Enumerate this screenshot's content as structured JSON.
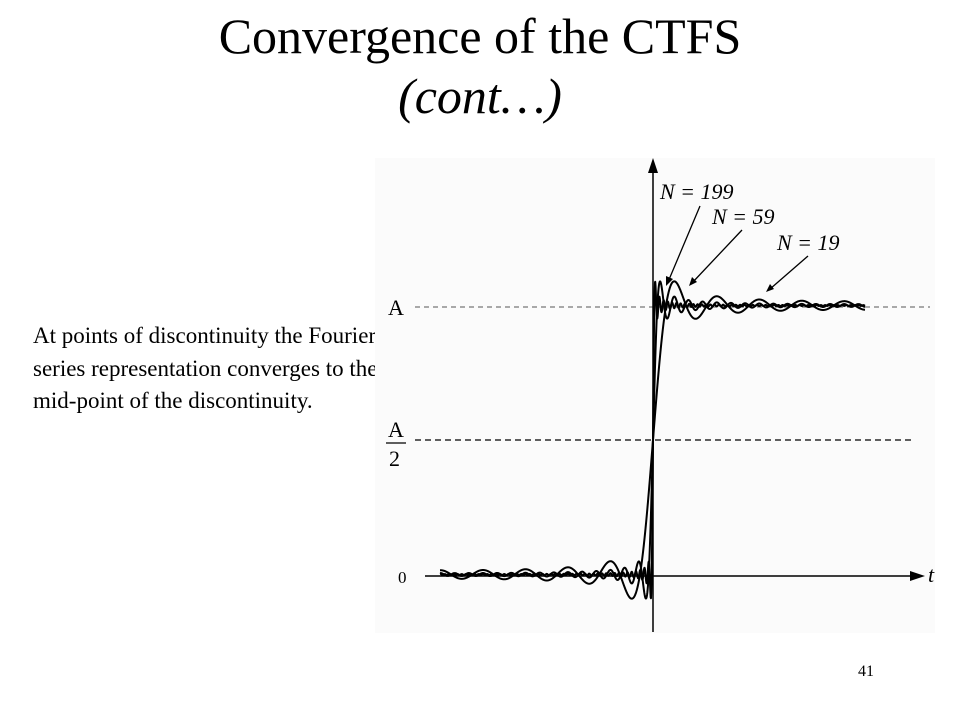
{
  "slide": {
    "title_line1": "Convergence of the CTFS",
    "title_line2": "(cont…)",
    "body_text": "At points of discontinuity the Fourier series representation converges to the mid-point of the discontinuity.",
    "page_number": "41"
  },
  "figure": {
    "labels": {
      "level_a": "A",
      "half_numerator": "A",
      "half_denominator": "2",
      "zero": "0",
      "time_axis": "t",
      "curve_199": "N = 199",
      "curve_59": "N = 59",
      "curve_19": "N = 19"
    },
    "partial_sum_terms": [
      199,
      59,
      19
    ]
  }
}
